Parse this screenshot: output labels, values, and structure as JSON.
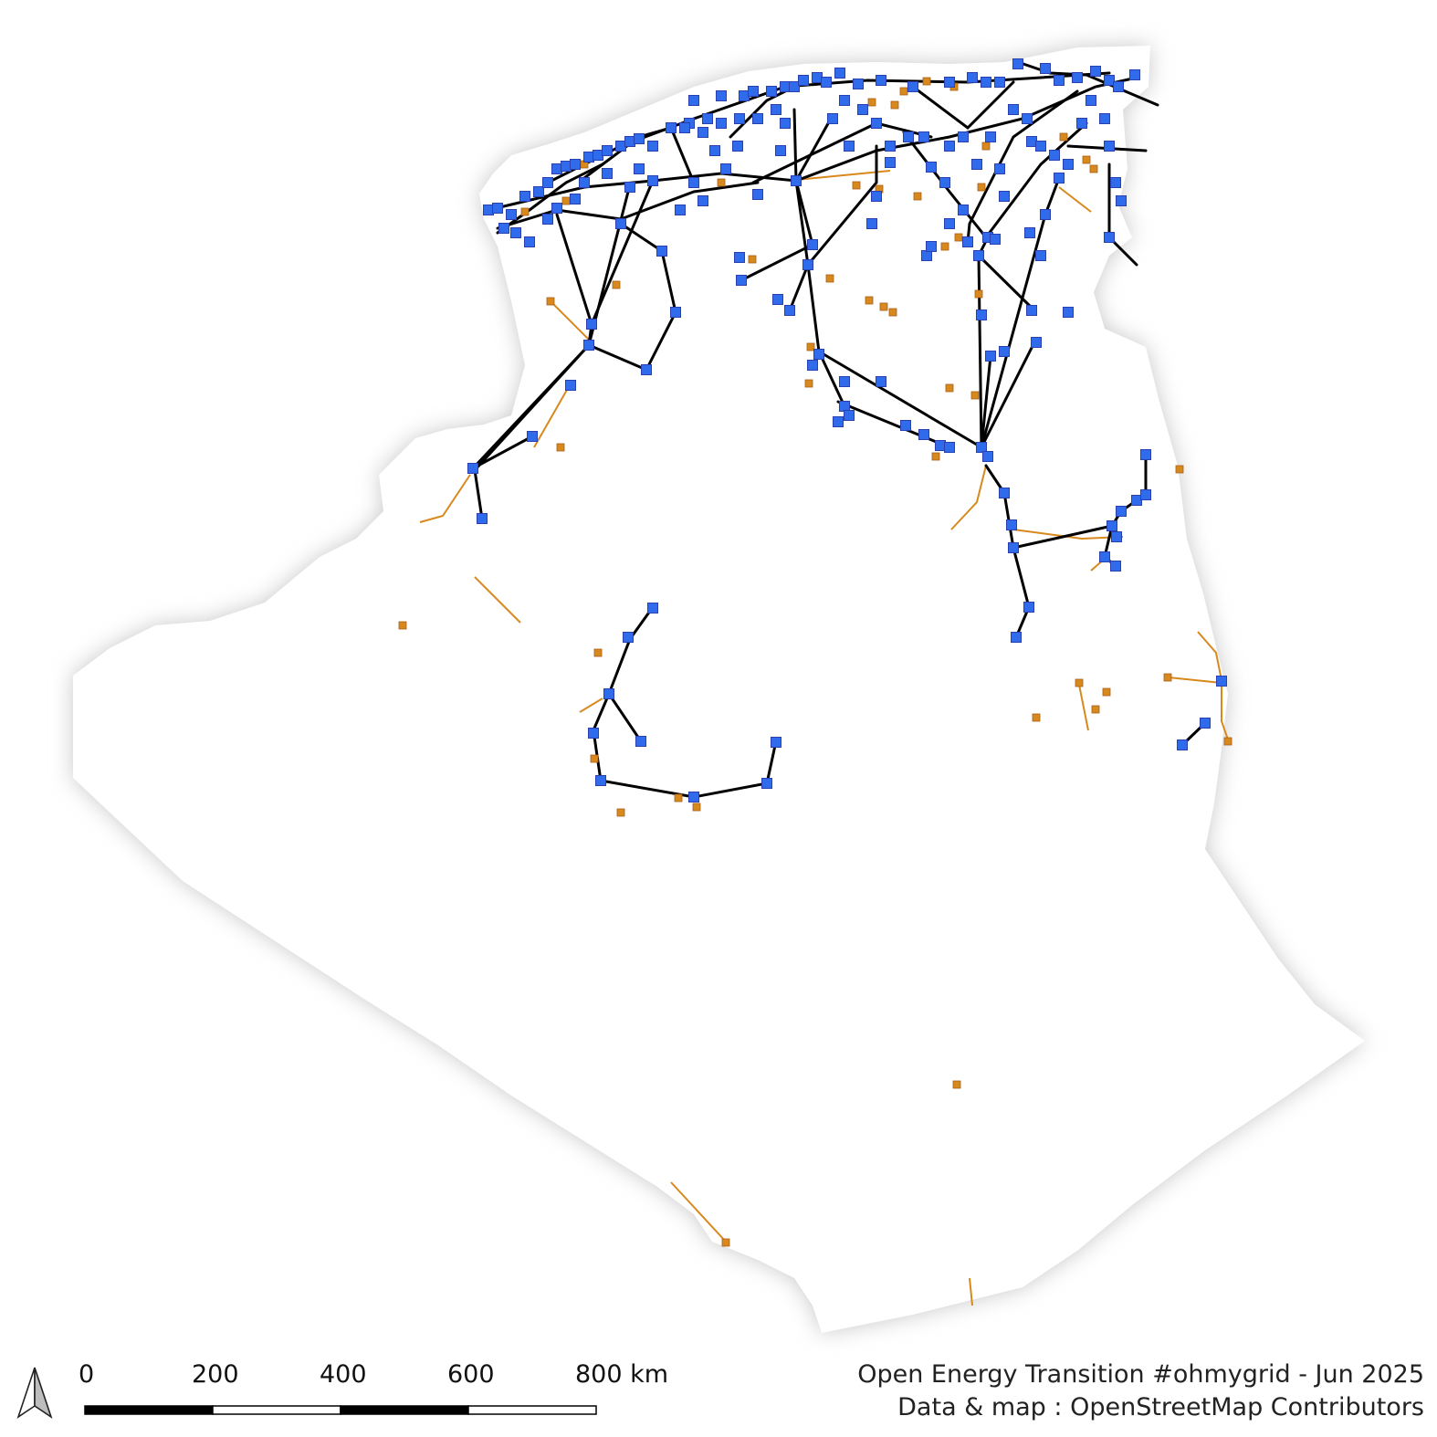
{
  "map": {
    "colors": {
      "land_fill": "#ffffff",
      "land_shadow": "#c8c8c8",
      "substation": "#2f6bea",
      "substation_stroke": "#2a3fb0",
      "line_high_voltage": "#000000",
      "line_low_voltage": "#d8891e",
      "minor_node": "#d8891e"
    },
    "legend_icons": [
      "north-arrow-icon"
    ]
  },
  "scale_bar": {
    "ticks": [
      "0",
      "200",
      "400",
      "600",
      "800 km"
    ]
  },
  "credits": {
    "line1": "Open Energy Transition #ohmygrid - Jun 2025",
    "line2": "Data & map : OpenStreetMap Contributors"
  }
}
